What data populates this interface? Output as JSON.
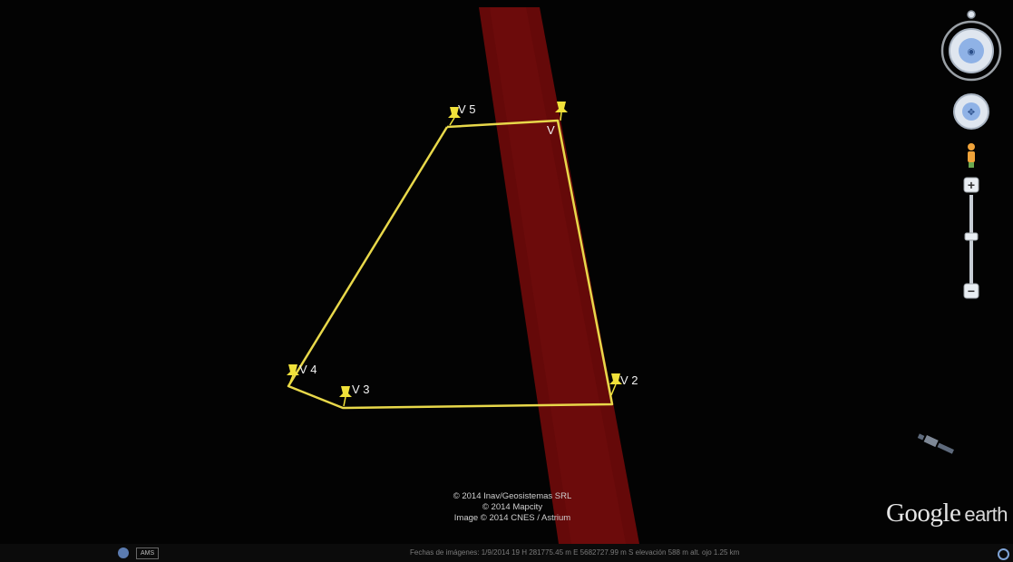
{
  "placemarks": [
    {
      "label": "V 5"
    },
    {
      "label": "V"
    },
    {
      "label": "V 4"
    },
    {
      "label": "V 3"
    },
    {
      "label": "V 2"
    }
  ],
  "attribution": [
    "© 2014 Inav/Geosistemas SRL",
    "© 2014 Mapcity",
    "Image © 2014 CNES / Astrium"
  ],
  "logo": {
    "google": "Google",
    "earth": "earth"
  },
  "status": {
    "lang_button": "AMS",
    "info": "Fechas de imágenes: 1/9/2014     19 H 281775.45 m E 5682727.99 m S  elevación   588 m     alt. ojo   1.25 km"
  },
  "colors": {
    "path": "#e8d84a",
    "band": "#6e0a0a",
    "pin": "#f0e13a"
  }
}
